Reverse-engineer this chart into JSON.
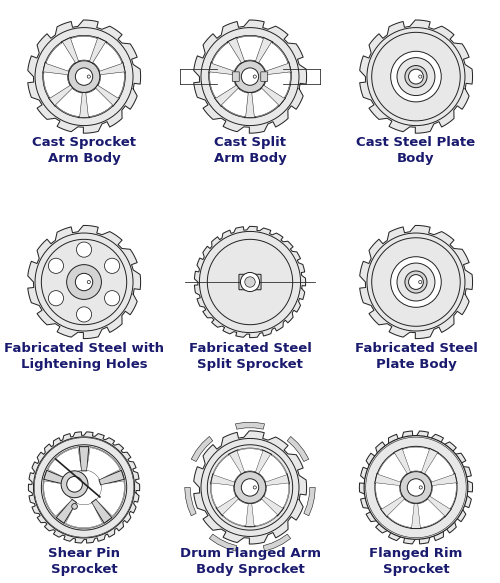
{
  "background_color": "#ffffff",
  "text_color": "#1a1a6e",
  "label_fontsize": 9.5,
  "label_fontweight": "bold",
  "sprockets": [
    {
      "row": 0,
      "col": 0,
      "label": "Cast Sprocket\nArm Body",
      "n_teeth": 13,
      "n_arms": 7,
      "type": "arm",
      "has_shaft_ext": false,
      "n_holes": 0,
      "more_teeth": false
    },
    {
      "row": 0,
      "col": 1,
      "label": "Cast Split\nArm Body",
      "n_teeth": 13,
      "n_arms": 7,
      "type": "arm",
      "has_shaft_ext": true,
      "n_holes": 0,
      "more_teeth": false
    },
    {
      "row": 0,
      "col": 2,
      "label": "Cast Steel Plate\nBody",
      "n_teeth": 13,
      "n_arms": 0,
      "type": "plate",
      "has_shaft_ext": false,
      "n_holes": 0,
      "more_teeth": false
    },
    {
      "row": 1,
      "col": 0,
      "label": "Fabricated Steel with\nLightening Holes",
      "n_teeth": 13,
      "n_arms": 0,
      "type": "holes",
      "has_shaft_ext": false,
      "n_holes": 6,
      "more_teeth": false
    },
    {
      "row": 1,
      "col": 1,
      "label": "Fabricated Steel\nSplit Sprocket",
      "n_teeth": 25,
      "n_arms": 0,
      "type": "split_plate",
      "has_shaft_ext": true,
      "n_holes": 0,
      "more_teeth": true
    },
    {
      "row": 1,
      "col": 2,
      "label": "Fabricated Steel\nPlate Body",
      "n_teeth": 13,
      "n_arms": 0,
      "type": "plate",
      "has_shaft_ext": false,
      "n_holes": 0,
      "more_teeth": false
    },
    {
      "row": 2,
      "col": 0,
      "label": "Shear Pin\nSprocket",
      "n_teeth": 30,
      "n_arms": 5,
      "type": "shear",
      "has_shaft_ext": false,
      "n_holes": 0,
      "more_teeth": true
    },
    {
      "row": 2,
      "col": 1,
      "label": "Drum Flanged Arm\nBody Sprocket",
      "n_teeth": 13,
      "n_arms": 7,
      "type": "drum",
      "has_shaft_ext": false,
      "n_holes": 0,
      "more_teeth": false
    },
    {
      "row": 2,
      "col": 2,
      "label": "Flanged Rim\nSprocket",
      "n_teeth": 22,
      "n_arms": 7,
      "type": "flanged",
      "has_shaft_ext": false,
      "n_holes": 0,
      "more_teeth": false
    }
  ]
}
